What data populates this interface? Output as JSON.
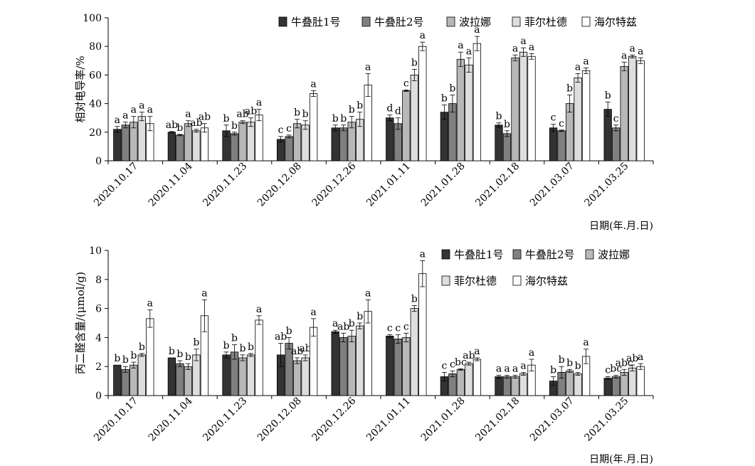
{
  "chart_data": [
    {
      "type": "bar",
      "ylabel": "相对电导率/%",
      "xlabel": "日期(年.月.日)",
      "ylim": [
        0,
        100
      ],
      "yticks": [
        0,
        20,
        40,
        60,
        80,
        100
      ],
      "categories": [
        "2020.10.17",
        "2020.11.04",
        "2020.11.23",
        "2020.12.08",
        "2020.12.26",
        "2021.01.11",
        "2021.01.28",
        "2021.02.18",
        "2021.03.07",
        "2021.03.25"
      ],
      "legend_position": "top-right",
      "series": [
        {
          "name": "牛叠肚1号",
          "color": "#333333",
          "values": [
            22,
            20,
            21,
            15,
            23,
            30,
            34,
            25,
            23,
            36
          ],
          "errors": [
            2,
            0.5,
            4,
            2,
            2,
            2,
            5,
            1.5,
            2.5,
            5
          ],
          "letters": [
            "a",
            "ab",
            "b",
            "c",
            "b",
            "d",
            "b",
            "b",
            "c",
            "b"
          ]
        },
        {
          "name": "牛叠肚2号",
          "color": "#808080",
          "values": [
            25,
            18,
            19,
            17,
            23,
            26,
            40,
            19,
            21,
            23
          ],
          "errors": [
            2,
            0.5,
            1,
            1,
            2,
            4,
            6,
            2,
            0.5,
            2
          ],
          "letters": [
            "a",
            "b",
            "b",
            "c",
            "b",
            "d",
            "b",
            "b",
            "c",
            "c"
          ]
        },
        {
          "name": "波拉娜",
          "color": "#b8b8b8",
          "values": [
            27,
            26,
            27,
            26,
            27,
            49,
            71,
            72,
            40,
            66
          ],
          "errors": [
            4,
            2,
            1,
            3,
            4,
            0.5,
            5,
            2,
            6,
            3
          ],
          "letters": [
            "a",
            "a",
            "ab",
            "b",
            "b",
            "c",
            "a",
            "a",
            "b",
            "a"
          ]
        },
        {
          "name": "菲尔杜德",
          "color": "#dedede",
          "values": [
            31,
            21,
            27,
            25,
            29,
            60,
            67,
            76,
            58,
            73
          ],
          "errors": [
            3,
            1,
            3,
            3,
            5,
            4,
            5,
            3,
            3,
            1
          ],
          "letters": [
            "a",
            "ab",
            "ab",
            "b",
            "b",
            "b",
            "a",
            "a",
            "a",
            "a"
          ]
        },
        {
          "name": "海尔特兹",
          "color": "#ffffff",
          "values": [
            26,
            23,
            32,
            47,
            53,
            80,
            82,
            73,
            63,
            70
          ],
          "errors": [
            5,
            3,
            4,
            2,
            8,
            3,
            5,
            2,
            2,
            2
          ],
          "letters": [
            "a",
            "ab",
            "a",
            "a",
            "a",
            "a",
            "a",
            "a",
            "a",
            "a"
          ]
        }
      ]
    },
    {
      "type": "bar",
      "ylabel": "丙二醛含量/(μmol/g)",
      "xlabel": "日期(年.月.日)",
      "ylim": [
        0,
        10
      ],
      "yticks": [
        0,
        2,
        4,
        6,
        8,
        10
      ],
      "categories": [
        "2020.10.17",
        "2020.11.04",
        "2020.11.23",
        "2020.12.08",
        "2020.12.26",
        "2021.01.11",
        "2021.01.28",
        "2021.02.18",
        "2021.03.07",
        "2021.03.25"
      ],
      "legend_position": "top-right",
      "series": [
        {
          "name": "牛叠肚1号",
          "color": "#333333",
          "values": [
            2.1,
            2.6,
            2.8,
            2.8,
            4.4,
            4.1,
            1.3,
            1.3,
            1.0,
            1.2
          ],
          "errors": [
            0,
            0,
            0.2,
            0.8,
            0.1,
            0.1,
            0.3,
            0.1,
            0.3,
            0.1
          ],
          "letters": [
            "b",
            "b",
            "b",
            "ab",
            "a",
            "c",
            "c",
            "a",
            "b",
            "c"
          ]
        },
        {
          "name": "牛叠肚2号",
          "color": "#808080",
          "values": [
            1.8,
            2.2,
            3.0,
            3.6,
            4.0,
            3.9,
            1.5,
            1.3,
            1.6,
            1.3
          ],
          "errors": [
            0.2,
            0.2,
            0.5,
            0.4,
            0.3,
            0.3,
            0.2,
            0.1,
            0.4,
            0.1
          ],
          "letters": [
            "b",
            "b",
            "b",
            "b",
            "ab",
            "c",
            "c",
            "a",
            "b",
            "bc"
          ]
        },
        {
          "name": "波拉娜",
          "color": "#b8b8b8",
          "values": [
            2.1,
            2.0,
            2.6,
            2.4,
            4.1,
            4.0,
            1.8,
            1.3,
            1.7,
            1.6
          ],
          "errors": [
            0.2,
            0.2,
            0.2,
            0.2,
            0.4,
            0.3,
            0.05,
            0.1,
            0.1,
            0.2
          ],
          "letters": [
            "b",
            "b",
            "b",
            "ab",
            "b",
            "c",
            "bc",
            "a",
            "b",
            "abc"
          ]
        },
        {
          "name": "菲尔杜德",
          "color": "#dedede",
          "values": [
            2.8,
            2.8,
            2.8,
            2.6,
            4.8,
            6.0,
            2.2,
            1.5,
            1.5,
            1.9
          ],
          "errors": [
            0.1,
            0.4,
            0.1,
            0.2,
            0.2,
            0.2,
            0.1,
            0.1,
            0.1,
            0.2
          ],
          "letters": [
            "b",
            "b",
            "b",
            "ab",
            "b",
            "b",
            "ab",
            "a",
            "b",
            "ab"
          ]
        },
        {
          "name": "海尔特兹",
          "color": "#ffffff",
          "values": [
            5.3,
            5.5,
            5.2,
            4.7,
            5.8,
            8.4,
            2.5,
            2.1,
            2.7,
            2.0
          ],
          "errors": [
            0.6,
            1.1,
            0.3,
            0.6,
            0.8,
            0.9,
            0.1,
            0.4,
            0.5,
            0.2
          ],
          "letters": [
            "a",
            "a",
            "a",
            "a",
            "a",
            "a",
            "a",
            "a",
            "a",
            "a"
          ]
        }
      ]
    }
  ]
}
